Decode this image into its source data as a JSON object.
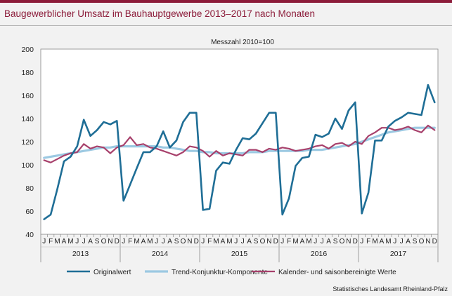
{
  "header": {
    "title": "Baugewerblicher Umsatz im Bauhauptgewerbe 2013–2017 nach Monaten"
  },
  "colors": {
    "accent": "#8c1c3a",
    "original": "#1f6e96",
    "trend": "#9cc9e2",
    "seasonal": "#a7406b"
  },
  "chart_data": {
    "type": "line",
    "subtitle": "Messzahl 2010=100",
    "ylim": [
      40,
      200
    ],
    "yticks": [
      40,
      60,
      80,
      100,
      120,
      140,
      160,
      180,
      200
    ],
    "grid": true,
    "legend_position": "bottom",
    "month_labels": [
      "J",
      "F",
      "M",
      "A",
      "M",
      "J",
      "J",
      "A",
      "S",
      "O",
      "N",
      "D"
    ],
    "years": [
      "2013",
      "2014",
      "2015",
      "2016",
      "2017"
    ],
    "source": "Statistisches Landesamt Rheinland-Pfalz",
    "series": [
      {
        "name": "Originalwert",
        "color": "#1f6e96",
        "values": [
          53,
          57,
          79,
          103,
          107,
          116,
          139,
          125,
          130,
          137,
          135,
          138,
          69,
          83,
          97,
          111,
          111,
          116,
          129,
          115,
          121,
          137,
          145,
          145,
          61,
          62,
          95,
          102,
          101,
          113,
          123,
          122,
          127,
          136,
          145,
          145,
          57,
          71,
          99,
          106,
          107,
          126,
          124,
          127,
          140,
          131,
          147,
          154,
          58,
          76,
          121,
          121,
          133,
          138,
          141,
          145,
          144,
          143,
          169,
          154
        ]
      },
      {
        "name": "Trend-Konjunktur-Komponente",
        "color": "#9cc9e2",
        "values": [
          106,
          107,
          108,
          109,
          110,
          111,
          112,
          113,
          114,
          115,
          115,
          116,
          116,
          116,
          116,
          116,
          116,
          116,
          115,
          115,
          114,
          113,
          112,
          112,
          111,
          111,
          110,
          110,
          110,
          110,
          110,
          111,
          111,
          111,
          112,
          112,
          112,
          112,
          112,
          112,
          113,
          113,
          113,
          114,
          115,
          116,
          117,
          118,
          120,
          122,
          124,
          126,
          128,
          129,
          130,
          131,
          132,
          132,
          132,
          132
        ]
      },
      {
        "name": "Kalender- und saisonbereinigte Werte",
        "color": "#a7406b",
        "values": [
          104,
          102,
          105,
          108,
          110,
          111,
          118,
          114,
          116,
          115,
          110,
          115,
          117,
          124,
          117,
          118,
          115,
          114,
          112,
          110,
          108,
          111,
          116,
          115,
          112,
          107,
          112,
          108,
          110,
          109,
          108,
          113,
          113,
          111,
          114,
          113,
          115,
          114,
          112,
          113,
          114,
          116,
          117,
          114,
          118,
          119,
          116,
          120,
          118,
          125,
          128,
          132,
          132,
          130,
          131,
          133,
          130,
          128,
          134,
          130
        ]
      }
    ]
  }
}
